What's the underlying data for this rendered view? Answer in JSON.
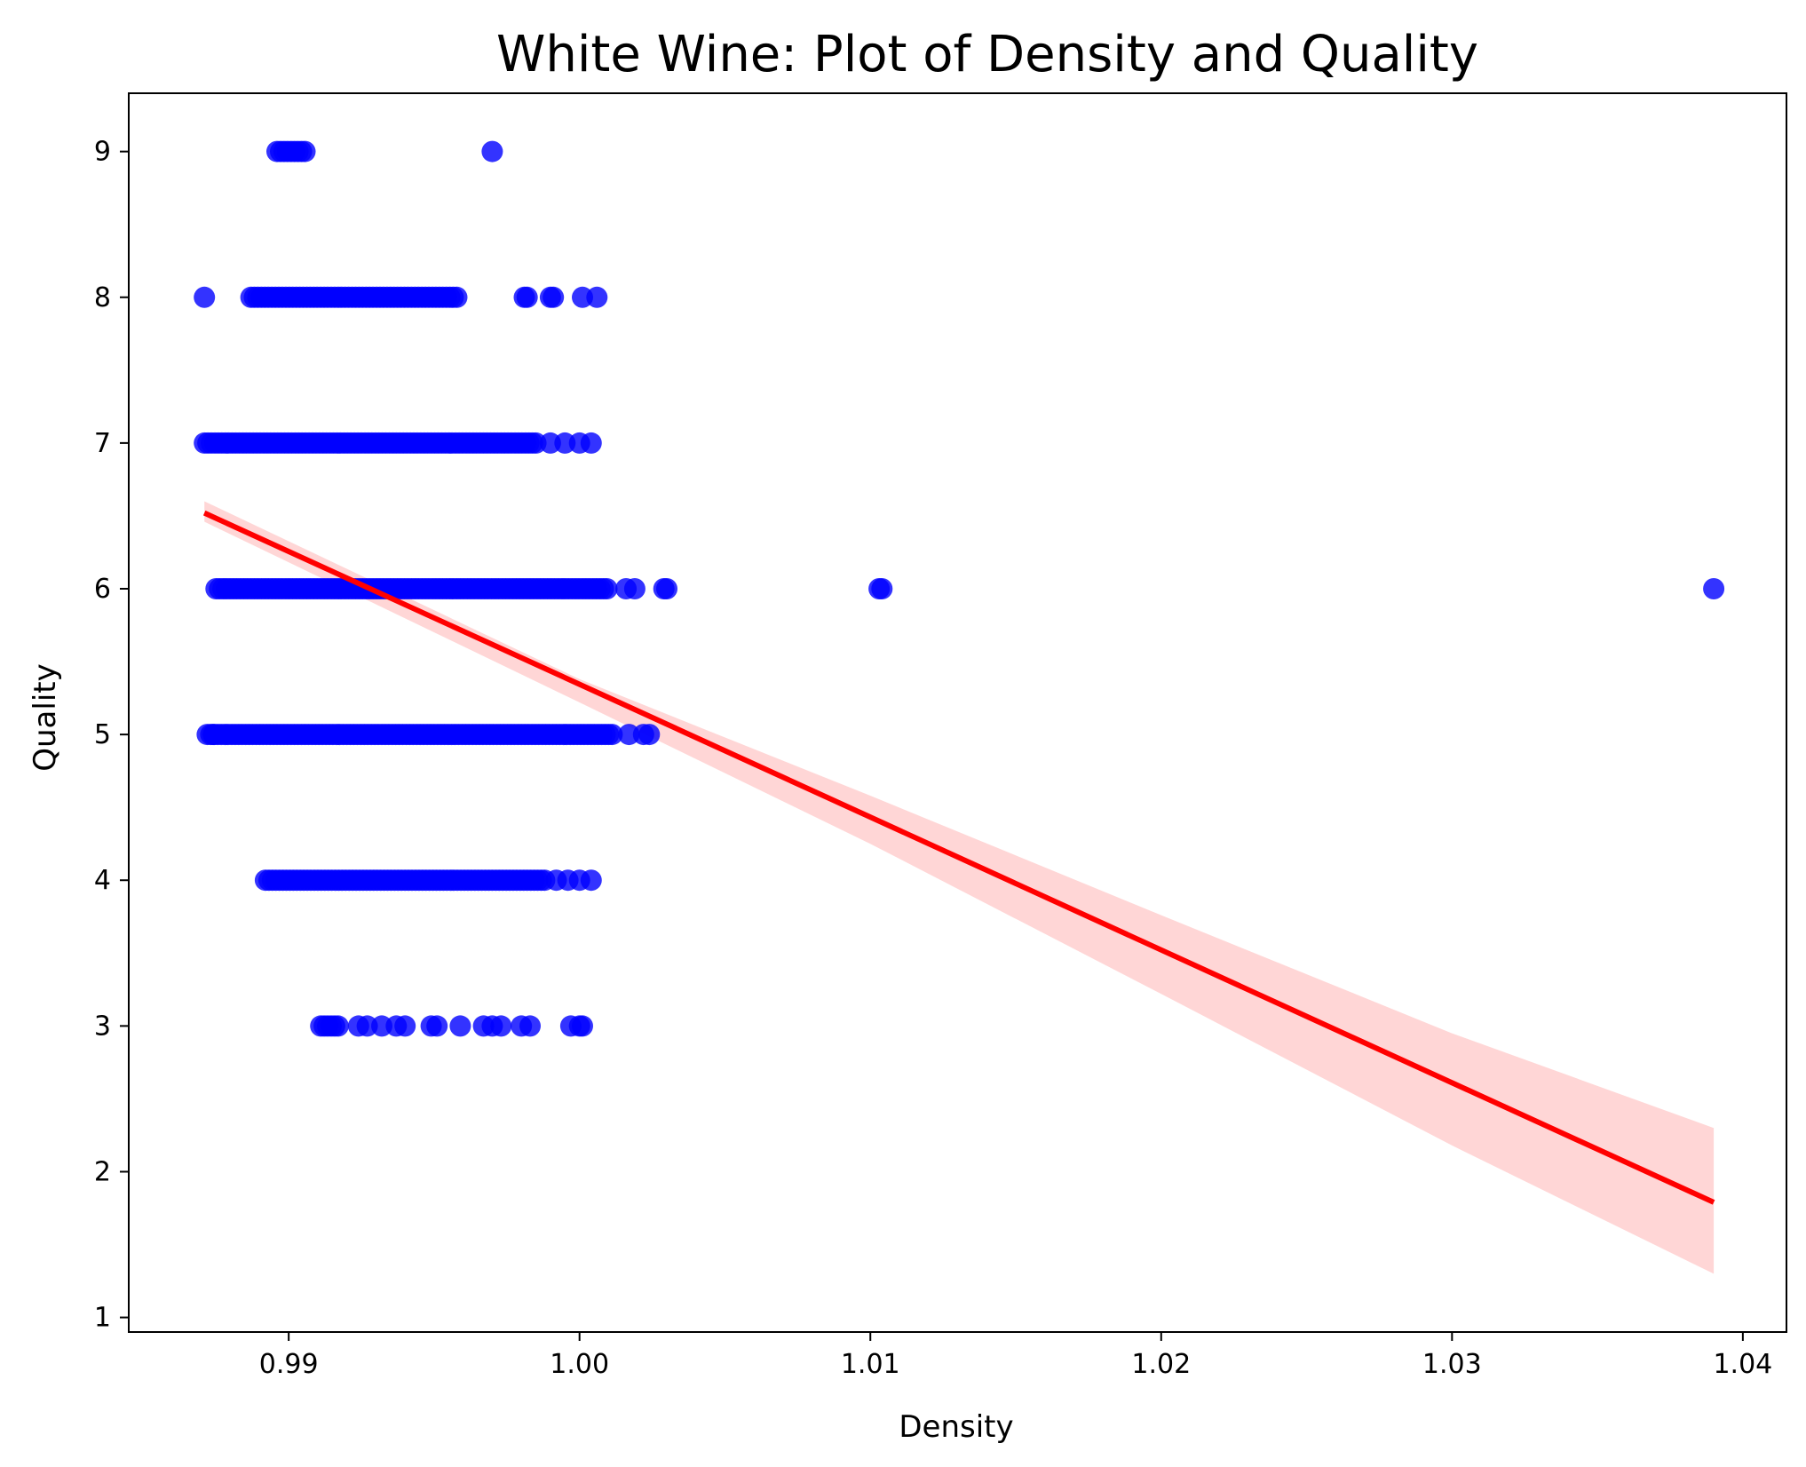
{
  "chart_data": {
    "type": "scatter",
    "title": "White Wine: Plot of Density and Quality",
    "xlabel": "Density",
    "ylabel": "Quality",
    "xlim": [
      0.9845,
      1.0415
    ],
    "ylim": [
      0.9,
      9.4
    ],
    "x_ticks": [
      0.99,
      1.0,
      1.01,
      1.02,
      1.03,
      1.04
    ],
    "x_tick_labels": [
      "0.99",
      "1.00",
      "1.01",
      "1.02",
      "1.03",
      "1.04"
    ],
    "y_ticks": [
      1,
      2,
      3,
      4,
      5,
      6,
      7,
      8,
      9
    ],
    "y_tick_labels": [
      "1",
      "2",
      "3",
      "4",
      "5",
      "6",
      "7",
      "8",
      "9"
    ],
    "grid": false,
    "colors": {
      "points": "#0000ff",
      "regression_line": "#ff0000",
      "confidence_band": "#ffc0c0"
    },
    "points_by_quality": [
      {
        "quality": 9,
        "density_min": 0.9896,
        "density_max": 0.9906,
        "density_extra": [
          0.997
        ]
      },
      {
        "quality": 8,
        "density_min": 0.9887,
        "density_max": 0.9958,
        "density_extra": [
          0.9871,
          0.9981,
          0.9982,
          0.999,
          0.9991,
          1.0001,
          1.0006
        ]
      },
      {
        "quality": 7,
        "density_min": 0.9871,
        "density_max": 0.9985,
        "density_extra": [
          0.999,
          0.9995,
          1.0,
          1.0004
        ]
      },
      {
        "quality": 6,
        "density_min": 0.9875,
        "density_max": 1.001,
        "density_extra": [
          1.0016,
          1.0019,
          1.0029,
          1.003,
          1.0103,
          1.0104,
          1.039
        ]
      },
      {
        "quality": 5,
        "density_min": 0.9872,
        "density_max": 1.0012,
        "density_extra": [
          0.9874,
          1.0017,
          1.0022,
          1.0024
        ]
      },
      {
        "quality": 4,
        "density_min": 0.9892,
        "density_max": 0.9988,
        "density_extra": [
          0.9992,
          0.9996,
          1.0,
          1.0004
        ]
      },
      {
        "quality": 3,
        "density_min": 0.9911,
        "density_max": 0.9917,
        "density_extra": [
          0.9924,
          0.9927,
          0.9932,
          0.9937,
          0.994,
          0.9949,
          0.9951,
          0.9959,
          0.9967,
          0.997,
          0.9973,
          0.998,
          0.9983,
          0.9997,
          1.0,
          1.0001
        ]
      }
    ],
    "regression": {
      "x": [
        0.9871,
        1.039
      ],
      "y": [
        6.52,
        1.79
      ]
    },
    "confidence_band": [
      {
        "x": 0.9871,
        "lower": 6.46,
        "upper": 6.6
      },
      {
        "x": 1.0,
        "lower": 5.22,
        "upper": 5.38
      },
      {
        "x": 1.01,
        "lower": 4.25,
        "upper": 4.58
      },
      {
        "x": 1.02,
        "lower": 3.22,
        "upper": 3.76
      },
      {
        "x": 1.03,
        "lower": 2.18,
        "upper": 2.95
      },
      {
        "x": 1.039,
        "lower": 1.3,
        "upper": 2.3
      }
    ]
  }
}
